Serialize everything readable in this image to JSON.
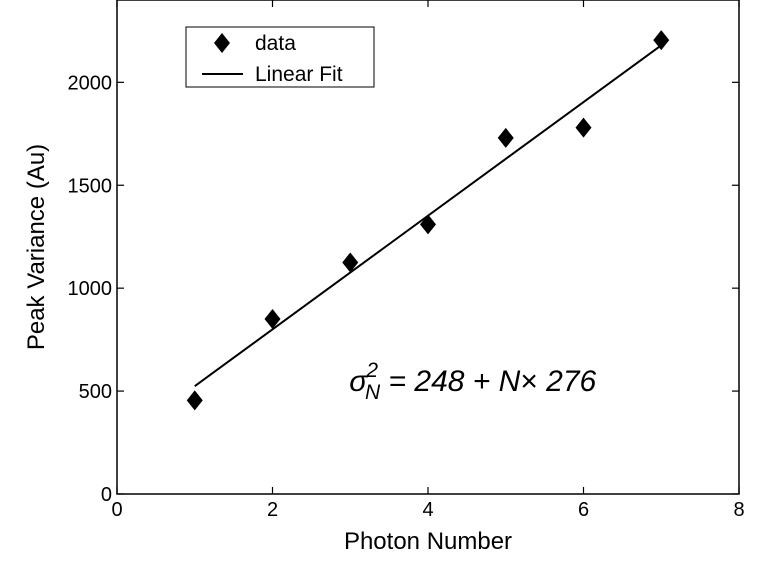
{
  "chart_data": {
    "type": "scatter",
    "xlabel": "Photon Number",
    "ylabel": "Peak Variance (Au)",
    "xlim": [
      0,
      8
    ],
    "ylim": [
      0,
      2400
    ],
    "xticks": [
      0,
      2,
      4,
      6,
      8
    ],
    "yticks": [
      0,
      500,
      1000,
      1500,
      2000
    ],
    "grid": false,
    "legend_position": "top-left",
    "series": [
      {
        "name": "data",
        "marker": "diamond",
        "color": "#000000",
        "x": [
          1,
          2,
          3,
          4,
          5,
          6,
          7
        ],
        "y": [
          455,
          850,
          1125,
          1310,
          1730,
          1780,
          2205
        ]
      },
      {
        "name": "Linear Fit",
        "style": "line",
        "color": "#000000",
        "intercept": 248,
        "slope": 276,
        "x_range": [
          1,
          7
        ]
      }
    ],
    "annotation": {
      "sigma": "σ",
      "superscript": "2",
      "subscript": "N",
      "rest": " = 248 + N",
      "times": "×",
      "tail": " 276",
      "anchor": [
        3.0,
        500
      ]
    }
  }
}
